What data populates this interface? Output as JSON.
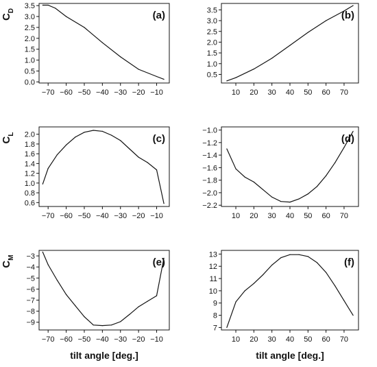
{
  "chart_data": [
    {
      "id": "a",
      "type": "line",
      "panel_label": "(a)",
      "ylabel": "C",
      "ylabel_sub": "D",
      "xlabel": "",
      "xlim": [
        -75,
        -3
      ],
      "ylim": [
        -0.05,
        3.6
      ],
      "xticks": [
        -70,
        -60,
        -50,
        -40,
        -30,
        -20,
        -10
      ],
      "xtick_labels": [
        "−70",
        "−60",
        "−50",
        "−40",
        "−30",
        "−20",
        "−10"
      ],
      "yticks": [
        0.0,
        0.5,
        1.0,
        1.5,
        2.0,
        2.5,
        3.0,
        3.5
      ],
      "ytick_labels": [
        "0.0",
        "0.5",
        "1.0",
        "1.5",
        "2.0",
        "2.5",
        "3.0",
        "3.5"
      ],
      "series": [
        {
          "x": [
            -73,
            -70,
            -66,
            -60,
            -50,
            -40,
            -30,
            -20,
            -10,
            -6
          ],
          "y": [
            3.52,
            3.52,
            3.38,
            3.0,
            2.5,
            1.8,
            1.15,
            0.58,
            0.25,
            0.12
          ]
        }
      ]
    },
    {
      "id": "b",
      "type": "line",
      "panel_label": "(b)",
      "ylabel": "",
      "ylabel_sub": "",
      "xlabel": "",
      "xlim": [
        2,
        78
      ],
      "ylim": [
        0.1,
        3.8
      ],
      "xticks": [
        10,
        20,
        30,
        40,
        50,
        60,
        70
      ],
      "xtick_labels": [
        "10",
        "20",
        "30",
        "40",
        "50",
        "60",
        "70"
      ],
      "yticks": [
        0.5,
        1.0,
        1.5,
        2.0,
        2.5,
        3.0,
        3.5
      ],
      "ytick_labels": [
        "0.5",
        "1.0",
        "1.5",
        "2.0",
        "2.5",
        "3.0",
        "3.5"
      ],
      "series": [
        {
          "x": [
            5,
            10,
            20,
            30,
            40,
            50,
            60,
            70,
            75
          ],
          "y": [
            0.2,
            0.35,
            0.75,
            1.25,
            1.85,
            2.45,
            3.0,
            3.45,
            3.7
          ]
        }
      ]
    },
    {
      "id": "c",
      "type": "line",
      "panel_label": "(c)",
      "ylabel": "C",
      "ylabel_sub": "L",
      "xlabel": "",
      "xlim": [
        -75,
        -3
      ],
      "ylim": [
        0.52,
        2.15
      ],
      "xticks": [
        -70,
        -60,
        -50,
        -40,
        -30,
        -20,
        -10
      ],
      "xtick_labels": [
        "−70",
        "−60",
        "−50",
        "−40",
        "−30",
        "−20",
        "−10"
      ],
      "yticks": [
        0.6,
        0.8,
        1.0,
        1.2,
        1.4,
        1.6,
        1.8,
        2.0
      ],
      "ytick_labels": [
        "0.6",
        "0.8",
        "1.0",
        "1.2",
        "1.4",
        "1.6",
        "1.8",
        "2.0"
      ],
      "series": [
        {
          "x": [
            -73,
            -70,
            -65,
            -60,
            -55,
            -50,
            -45,
            -40,
            -35,
            -30,
            -25,
            -20,
            -15,
            -10,
            -6
          ],
          "y": [
            0.98,
            1.3,
            1.58,
            1.78,
            1.94,
            2.04,
            2.08,
            2.06,
            1.98,
            1.87,
            1.7,
            1.53,
            1.42,
            1.27,
            0.58
          ]
        }
      ]
    },
    {
      "id": "d",
      "type": "line",
      "panel_label": "(d)",
      "ylabel": "",
      "ylabel_sub": "",
      "xlabel": "",
      "xlim": [
        2,
        78
      ],
      "ylim": [
        -2.22,
        -0.95
      ],
      "xticks": [
        10,
        20,
        30,
        40,
        50,
        60,
        70
      ],
      "xtick_labels": [
        "10",
        "20",
        "30",
        "40",
        "50",
        "60",
        "70"
      ],
      "yticks": [
        -2.2,
        -2.0,
        -1.8,
        -1.6,
        -1.4,
        -1.2,
        -1.0
      ],
      "ytick_labels": [
        "−2.2",
        "−2.0",
        "−1.8",
        "−1.6",
        "−1.4",
        "−1.2",
        "−1.0"
      ],
      "series": [
        {
          "x": [
            5,
            10,
            15,
            20,
            25,
            30,
            35,
            40,
            45,
            50,
            55,
            60,
            65,
            70,
            75
          ],
          "y": [
            -1.3,
            -1.62,
            -1.75,
            -1.83,
            -1.95,
            -2.07,
            -2.14,
            -2.15,
            -2.1,
            -2.02,
            -1.9,
            -1.73,
            -1.52,
            -1.28,
            -1.02
          ]
        }
      ]
    },
    {
      "id": "e",
      "type": "line",
      "panel_label": "(e)",
      "ylabel": "C",
      "ylabel_sub": "M",
      "xlabel": "tilt angle [deg.]",
      "xlim": [
        -75,
        -3
      ],
      "ylim": [
        -9.7,
        -2.5
      ],
      "xticks": [
        -70,
        -60,
        -50,
        -40,
        -30,
        -20,
        -10
      ],
      "xtick_labels": [
        "−70",
        "−60",
        "−50",
        "−40",
        "−30",
        "−20",
        "−10"
      ],
      "yticks": [
        -9,
        -8,
        -7,
        -6,
        -5,
        -4,
        -3
      ],
      "ytick_labels": [
        "−9",
        "−8",
        "−7",
        "−6",
        "−5",
        "−4",
        "−3"
      ],
      "series": [
        {
          "x": [
            -73,
            -70,
            -65,
            -60,
            -55,
            -50,
            -45,
            -40,
            -35,
            -30,
            -25,
            -20,
            -15,
            -10,
            -6
          ],
          "y": [
            -2.65,
            -3.8,
            -5.2,
            -6.5,
            -7.5,
            -8.5,
            -9.25,
            -9.3,
            -9.25,
            -8.95,
            -8.3,
            -7.6,
            -7.1,
            -6.6,
            -3.2
          ]
        }
      ]
    },
    {
      "id": "f",
      "type": "line",
      "panel_label": "(f)",
      "ylabel": "",
      "ylabel_sub": "",
      "xlabel": "tilt angle [deg.]",
      "xlim": [
        2,
        78
      ],
      "ylim": [
        6.8,
        13.3
      ],
      "xticks": [
        10,
        20,
        30,
        40,
        50,
        60,
        70
      ],
      "xtick_labels": [
        "10",
        "20",
        "30",
        "40",
        "50",
        "60",
        "70"
      ],
      "yticks": [
        7,
        8,
        9,
        10,
        11,
        12,
        13
      ],
      "ytick_labels": [
        "7",
        "8",
        "9",
        "10",
        "11",
        "12",
        "13"
      ],
      "series": [
        {
          "x": [
            5,
            10,
            15,
            20,
            25,
            30,
            35,
            40,
            45,
            50,
            55,
            60,
            65,
            70,
            75
          ],
          "y": [
            7.0,
            9.1,
            10.0,
            10.6,
            11.3,
            12.1,
            12.7,
            12.95,
            12.95,
            12.8,
            12.3,
            11.5,
            10.4,
            9.2,
            8.0
          ]
        }
      ]
    }
  ]
}
